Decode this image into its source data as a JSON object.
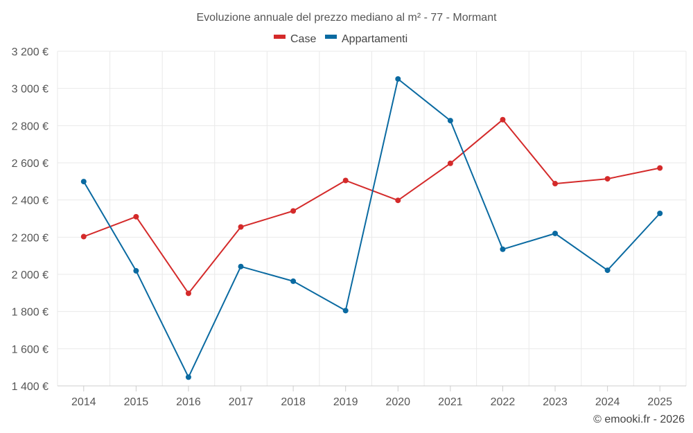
{
  "chart_data": {
    "type": "line",
    "title": "Evoluzione annuale del prezzo mediano al m² - 77 - Mormant",
    "categories": [
      "2014",
      "2015",
      "2016",
      "2017",
      "2018",
      "2019",
      "2020",
      "2021",
      "2022",
      "2023",
      "2024",
      "2025"
    ],
    "series": [
      {
        "name": "Case",
        "color": "#d42a2a",
        "values": [
          2203,
          2310,
          1898,
          2255,
          2341,
          2505,
          2398,
          2597,
          2832,
          2488,
          2514,
          2572
        ]
      },
      {
        "name": "Appartamenti",
        "color": "#0a6aa1",
        "values": [
          2499,
          2019,
          1447,
          2042,
          1963,
          1805,
          3051,
          2827,
          2135,
          2220,
          2022,
          2328
        ]
      }
    ],
    "ylim": [
      1400,
      3200
    ],
    "yticks": [
      1400,
      1600,
      1800,
      2000,
      2200,
      2400,
      2600,
      2800,
      3000,
      3200
    ],
    "ytick_labels": [
      "1 400 €",
      "1 600 €",
      "1 800 €",
      "2 000 €",
      "2 200 €",
      "2 400 €",
      "2 600 €",
      "2 800 €",
      "3 000 €",
      "3 200 €"
    ],
    "xlabel": "",
    "ylabel": "",
    "legend_position": "top-center",
    "grid": true
  },
  "credit": "© emooki.fr - 2026"
}
